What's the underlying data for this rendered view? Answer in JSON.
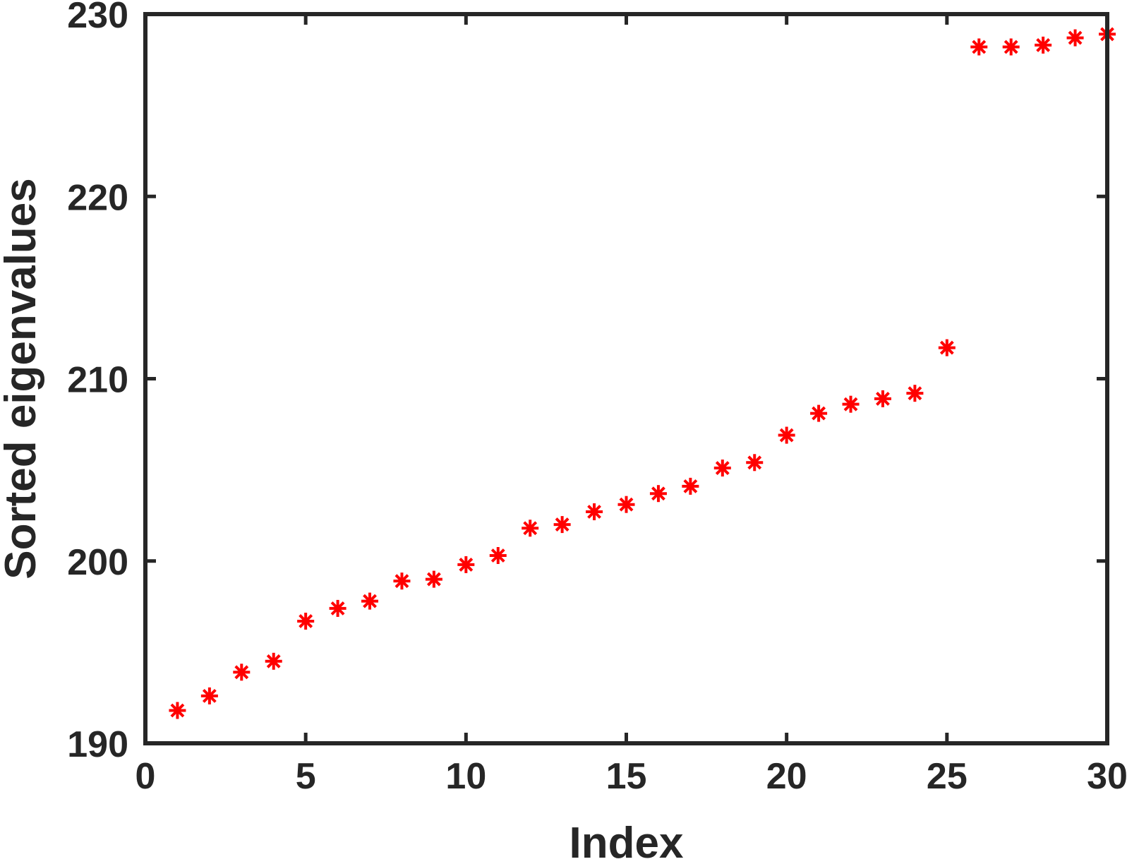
{
  "chart_data": {
    "type": "scatter",
    "title": "",
    "xlabel": "Index",
    "ylabel": "Sorted eigenvalues",
    "xlim": [
      0,
      30
    ],
    "ylim": [
      190,
      230
    ],
    "xticks": [
      0,
      5,
      10,
      15,
      20,
      25,
      30
    ],
    "xtick_labels": [
      "0",
      "5",
      "10",
      "15",
      "20",
      "25",
      "30"
    ],
    "yticks": [
      190,
      200,
      210,
      220,
      230
    ],
    "ytick_labels": [
      "190",
      "200",
      "210",
      "220",
      "230"
    ],
    "grid": false,
    "marker": "asterisk",
    "series": [
      {
        "color": "#ff0000",
        "x": [
          1,
          2,
          3,
          4,
          5,
          6,
          7,
          8,
          9,
          10,
          11,
          12,
          13,
          14,
          15,
          16,
          17,
          18,
          19,
          20,
          21,
          22,
          23,
          24,
          25,
          26,
          27,
          28,
          29,
          30
        ],
        "y": [
          191.8,
          192.6,
          193.9,
          194.5,
          196.7,
          197.4,
          197.8,
          198.9,
          199.0,
          199.8,
          200.3,
          201.8,
          202.0,
          202.7,
          203.1,
          203.7,
          204.1,
          205.1,
          205.4,
          206.9,
          208.1,
          208.6,
          208.9,
          209.2,
          211.7,
          228.2,
          228.2,
          228.3,
          228.7,
          228.9
        ]
      }
    ]
  }
}
